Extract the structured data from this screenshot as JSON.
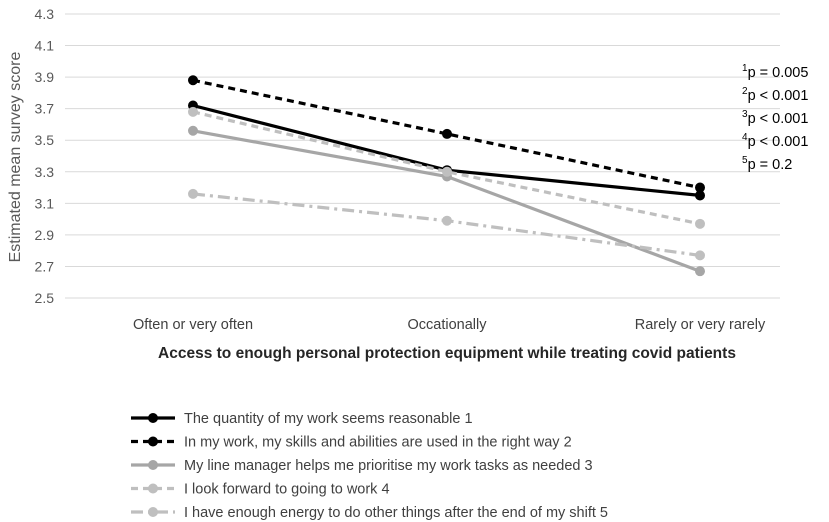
{
  "chart_data": {
    "type": "line",
    "title": "",
    "xlabel": "Access to enough personal protection equipment while treating covid patients",
    "ylabel": "Estimated mean survey score",
    "ylim": [
      2.5,
      4.3
    ],
    "yticks": [
      "2.5",
      "2.7",
      "2.9",
      "3.1",
      "3.3",
      "3.5",
      "3.7",
      "3.9",
      "4.1",
      "4.3"
    ],
    "categories": [
      "Often or very often",
      "Occationally",
      "Rarely or very rarely"
    ],
    "grid": true,
    "legend_position": "bottom",
    "series": [
      {
        "name": "The quantity of my work seems reasonable 1",
        "values": [
          3.72,
          3.31,
          3.15
        ],
        "color": "#000000",
        "dash": "solid"
      },
      {
        "name": "In my work, my skills and abilities are used in the right way 2",
        "values": [
          3.88,
          3.54,
          3.2
        ],
        "color": "#000000",
        "dash": "dashed"
      },
      {
        "name": "My line manager helps me prioritise my work tasks as needed 3",
        "values": [
          3.56,
          3.27,
          2.67
        ],
        "color": "#a6a6a6",
        "dash": "solid"
      },
      {
        "name": "I look forward to going to work 4",
        "values": [
          3.68,
          3.3,
          2.97
        ],
        "color": "#bfbfbf",
        "dash": "dashed"
      },
      {
        "name": "I have enough energy to do other things after the end of my shift 5",
        "values": [
          3.16,
          2.99,
          2.77
        ],
        "color": "#bfbfbf",
        "dash": "dashdot"
      }
    ],
    "annotations": [
      {
        "sup": "1",
        "text": "p = 0.005"
      },
      {
        "sup": "2",
        "text": "p < 0.001"
      },
      {
        "sup": "3",
        "text": "p < 0.001"
      },
      {
        "sup": "4",
        "text": "p < 0.001"
      },
      {
        "sup": "5",
        "text": "p = 0.2"
      }
    ]
  }
}
